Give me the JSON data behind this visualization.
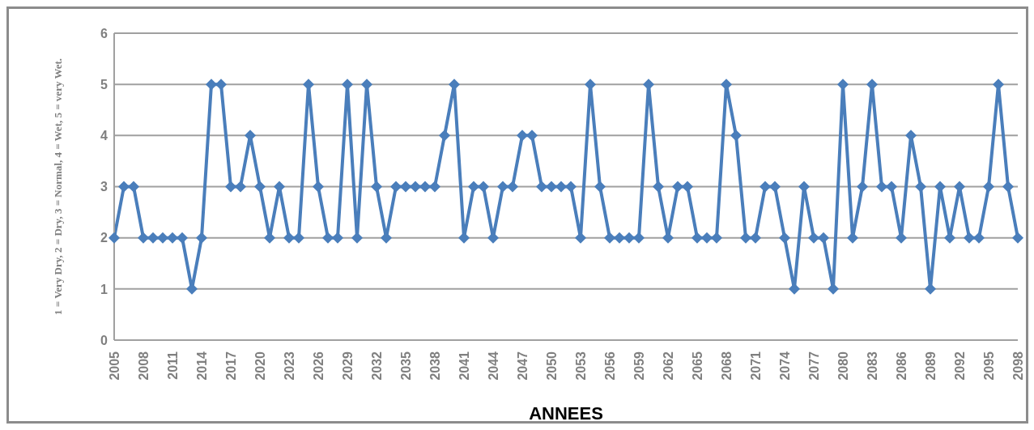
{
  "chart_data": {
    "type": "line",
    "xlabel": "ANNEES",
    "ylabel": "1 = Very Dry, 2 = Dry, 3 = Normal, 4 = Wet, 5 = very Wet.",
    "categories": [
      "2005",
      null,
      null,
      "2008",
      null,
      null,
      "2011",
      null,
      null,
      "2014",
      null,
      null,
      "2017",
      null,
      null,
      "2020",
      null,
      null,
      "2023",
      null,
      null,
      "2026",
      null,
      null,
      "2029",
      null,
      null,
      "2032",
      null,
      null,
      "2035",
      null,
      null,
      "2038",
      null,
      null,
      "2041",
      null,
      null,
      "2044",
      null,
      null,
      "2047",
      null,
      null,
      "2050",
      null,
      null,
      "2053",
      null,
      null,
      "2056",
      null,
      null,
      "2059",
      null,
      null,
      "2062",
      null,
      null,
      "2065",
      null,
      null,
      "2068",
      null,
      null,
      "2071",
      null,
      null,
      "2074",
      null,
      null,
      "2077",
      null,
      null,
      "2080",
      null,
      null,
      "2083",
      null,
      null,
      "2086",
      null,
      null,
      "2089",
      null,
      null,
      "2092",
      null,
      null,
      "2095",
      null,
      null,
      "2098"
    ],
    "series": [
      {
        "color": "#4a7ebb",
        "values": [
          2,
          3,
          3,
          2,
          2,
          2,
          2,
          2,
          1,
          2,
          5,
          5,
          3,
          3,
          4,
          3,
          2,
          3,
          2,
          2,
          5,
          3,
          2,
          2,
          5,
          2,
          5,
          3,
          2,
          3,
          3,
          3,
          3,
          3,
          4,
          5,
          2,
          3,
          3,
          2,
          3,
          3,
          4,
          4,
          3,
          3,
          3,
          3,
          2,
          5,
          3,
          2,
          2,
          2,
          2,
          5,
          3,
          2,
          3,
          3,
          2,
          2,
          2,
          5,
          4,
          2,
          2,
          3,
          3,
          2,
          1,
          3,
          2,
          2,
          1,
          5,
          2,
          3,
          5,
          3,
          3,
          2,
          4,
          3,
          1,
          3,
          2,
          3,
          2,
          2,
          3,
          5,
          3,
          2
        ]
      }
    ],
    "ylim": [
      0,
      6
    ],
    "yticks": [
      0,
      1,
      2,
      3,
      4,
      5,
      6
    ],
    "grid": "y",
    "legend": false,
    "marker": "diamond",
    "line_style": "solid"
  }
}
